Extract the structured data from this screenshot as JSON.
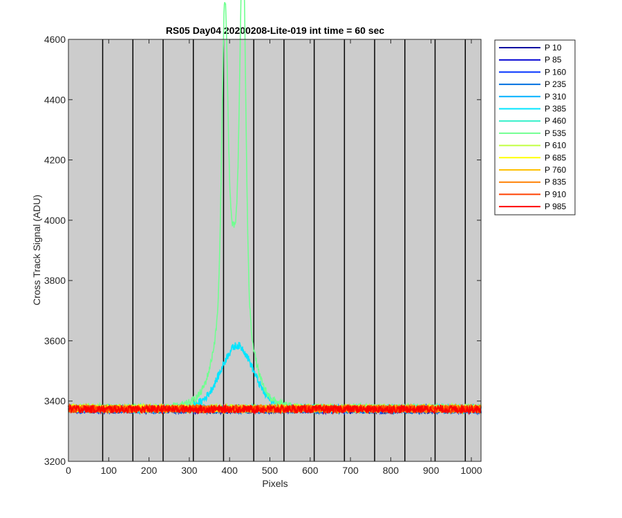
{
  "chart_data": {
    "type": "line",
    "title": "RS05 Day04 20200208-Lite-019 int time = 60 sec",
    "xlabel": "Pixels",
    "ylabel": "Cross Track Signal (ADU)",
    "xlim": [
      0,
      1024
    ],
    "ylim": [
      3200,
      4600
    ],
    "xticks": [
      "0",
      "100",
      "200",
      "300",
      "400",
      "500",
      "600",
      "700",
      "800",
      "900",
      "1000"
    ],
    "yticks": [
      "3200",
      "3400",
      "3600",
      "3800",
      "4000",
      "4200",
      "4400",
      "4600"
    ],
    "xtick_values": [
      0,
      100,
      200,
      300,
      400,
      500,
      600,
      700,
      800,
      900,
      1000
    ],
    "ytick_values": [
      3200,
      3400,
      3600,
      3800,
      4000,
      4200,
      4400,
      4600
    ],
    "vertical_lines": [
      85,
      160,
      235,
      310,
      385,
      460,
      535,
      610,
      685,
      760,
      835,
      910,
      985
    ],
    "grid": false,
    "background": "#cccccc",
    "legend_position": "outside-top-right",
    "series": [
      {
        "name": "P 10",
        "color": "#0000a0",
        "baseline": 3372,
        "noise": 13
      },
      {
        "name": "P 85",
        "color": "#0000d2",
        "baseline": 3373,
        "noise": 13
      },
      {
        "name": "P 160",
        "color": "#0030ff",
        "baseline": 3372,
        "noise": 13
      },
      {
        "name": "P 235",
        "color": "#0070e0",
        "baseline": 3371,
        "noise": 13
      },
      {
        "name": "P 310",
        "color": "#00b0ff",
        "baseline": 3374,
        "noise": 13
      },
      {
        "name": "P 385",
        "color": "#00e5ff",
        "baseline": 3375,
        "noise": 13,
        "peaks": [
          {
            "center": 420,
            "width": 38,
            "height": 170
          }
        ]
      },
      {
        "name": "P 460",
        "color": "#30f0c8",
        "baseline": 3376,
        "noise": 13
      },
      {
        "name": "P 535",
        "color": "#70ff90",
        "baseline": 3378,
        "noise": 13,
        "peaks": [
          {
            "center": 388,
            "width": 7,
            "height": 880
          },
          {
            "center": 433,
            "width": 7,
            "height": 1080
          },
          {
            "center": 410,
            "width": 30,
            "height": 470
          }
        ]
      },
      {
        "name": "P 610",
        "color": "#c0ff40",
        "baseline": 3377,
        "noise": 13
      },
      {
        "name": "P 685",
        "color": "#ffff00",
        "baseline": 3375,
        "noise": 13
      },
      {
        "name": "P 760",
        "color": "#ffc000",
        "baseline": 3374,
        "noise": 13
      },
      {
        "name": "P 835",
        "color": "#ff8000",
        "baseline": 3375,
        "noise": 13
      },
      {
        "name": "P 910",
        "color": "#ff4000",
        "baseline": 3374,
        "noise": 13
      },
      {
        "name": "P 985",
        "color": "#ff0000",
        "baseline": 3373,
        "noise": 13
      }
    ]
  }
}
